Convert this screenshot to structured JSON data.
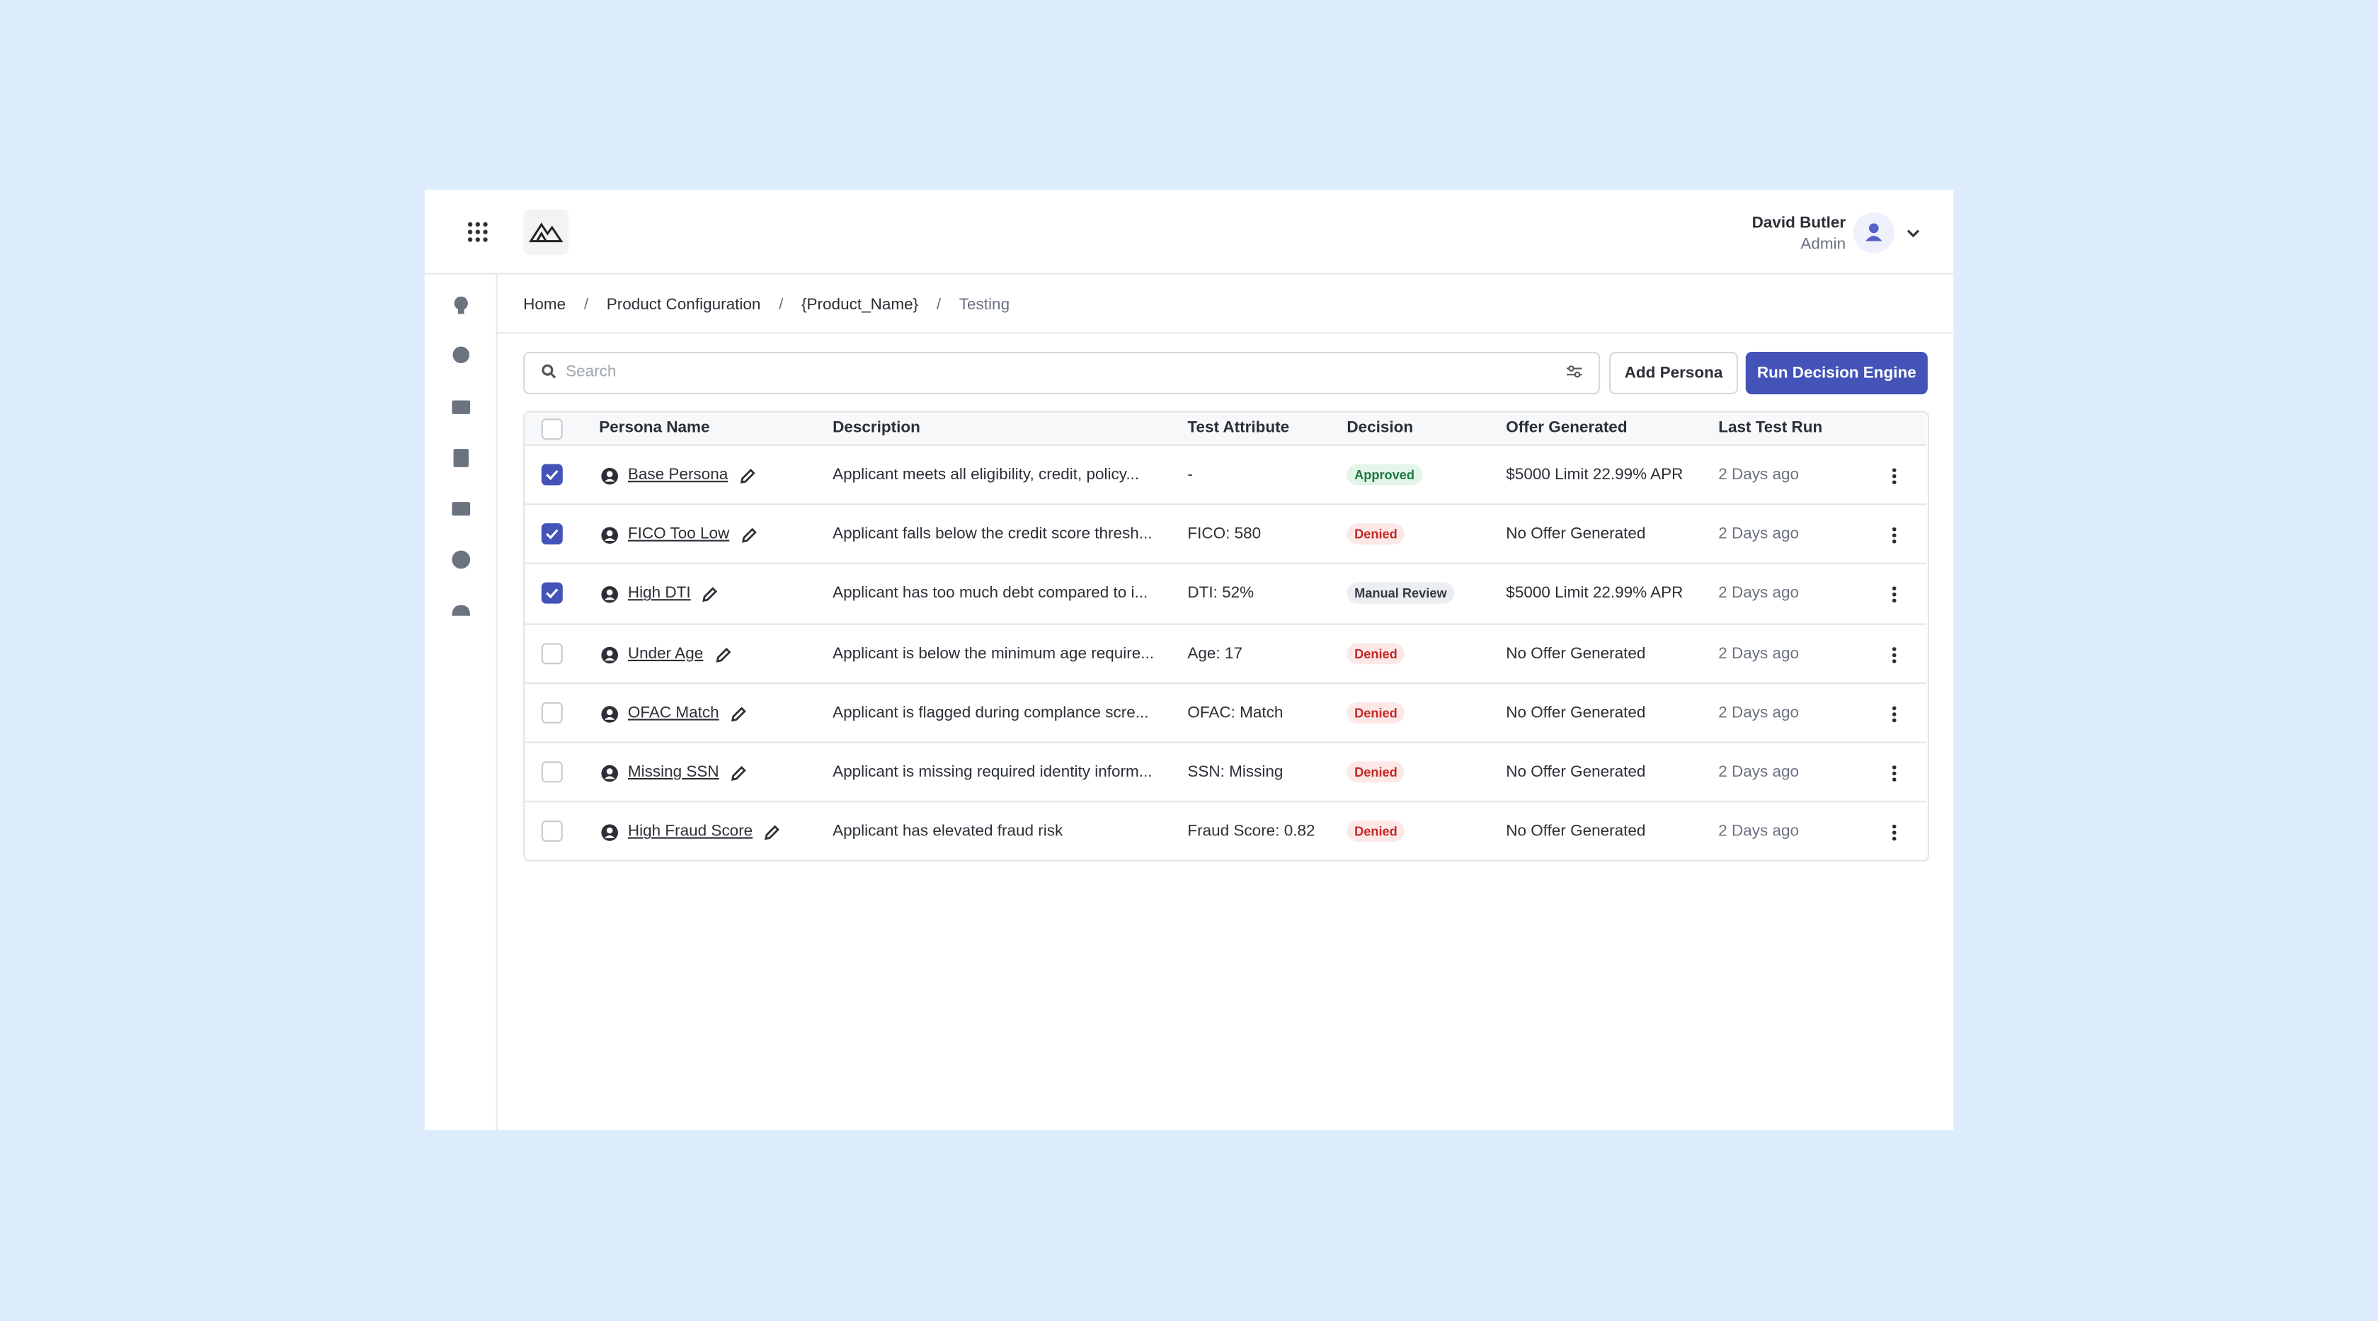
{
  "header": {
    "user_name": "David Butler",
    "user_role": "Admin"
  },
  "breadcrumb": [
    "Home",
    "Product Configuration",
    "{Product_Name}",
    "Testing"
  ],
  "toolbar": {
    "search_placeholder": "Search",
    "add_button": "Add Persona",
    "run_button": "Run Decision Engine"
  },
  "table": {
    "columns": [
      "Persona Name",
      "Description",
      "Test Attribute",
      "Decision",
      "Offer Generated",
      "Last Test Run"
    ],
    "rows": [
      {
        "checked": true,
        "name": "Base Persona",
        "description": "Applicant meets all eligibility, credit, policy...",
        "attribute": "-",
        "decision": "Approved",
        "decision_color": "#1e7a3c",
        "decision_bg": "#e3f5e8",
        "offer": "$5000 Limit 22.99% APR",
        "last_run": "2 Days ago"
      },
      {
        "checked": true,
        "name": "FICO Too Low",
        "description": "Applicant falls below the credit score thresh...",
        "attribute": "FICO: 580",
        "decision": "Denied",
        "decision_color": "#c62828",
        "decision_bg": "#fde8e8",
        "offer": "No Offer Generated",
        "last_run": "2 Days ago"
      },
      {
        "checked": true,
        "name": "High DTI",
        "description": "Applicant has too much debt compared to i...",
        "attribute": "DTI: 52%",
        "decision": "Manual Review",
        "decision_color": "#333a44",
        "decision_bg": "#eceef1",
        "offer": "$5000 Limit 22.99% APR",
        "last_run": "2 Days ago"
      },
      {
        "checked": false,
        "name": "Under Age",
        "description": "Applicant is below the minimum age require...",
        "attribute": "Age: 17",
        "decision": "Denied",
        "decision_color": "#c62828",
        "decision_bg": "#fde8e8",
        "offer": "No Offer Generated",
        "last_run": "2 Days ago"
      },
      {
        "checked": false,
        "name": "OFAC Match",
        "description": "Applicant is flagged during complance scre...",
        "attribute": "OFAC: Match",
        "decision": "Denied",
        "decision_color": "#c62828",
        "decision_bg": "#fde8e8",
        "offer": "No Offer Generated",
        "last_run": "2 Days ago"
      },
      {
        "checked": false,
        "name": "Missing SSN",
        "description": "Applicant is missing required identity inform...",
        "attribute": "SSN: Missing",
        "decision": "Denied",
        "decision_color": "#c62828",
        "decision_bg": "#fde8e8",
        "offer": "No Offer Generated",
        "last_run": "2 Days ago"
      },
      {
        "checked": false,
        "name": "High Fraud Score",
        "description": "Applicant has elevated fraud risk",
        "attribute": "Fraud Score: 0.82",
        "decision": "Denied",
        "decision_color": "#c62828",
        "decision_bg": "#fde8e8",
        "offer": "No Offer Generated",
        "last_run": "2 Days ago"
      }
    ]
  }
}
